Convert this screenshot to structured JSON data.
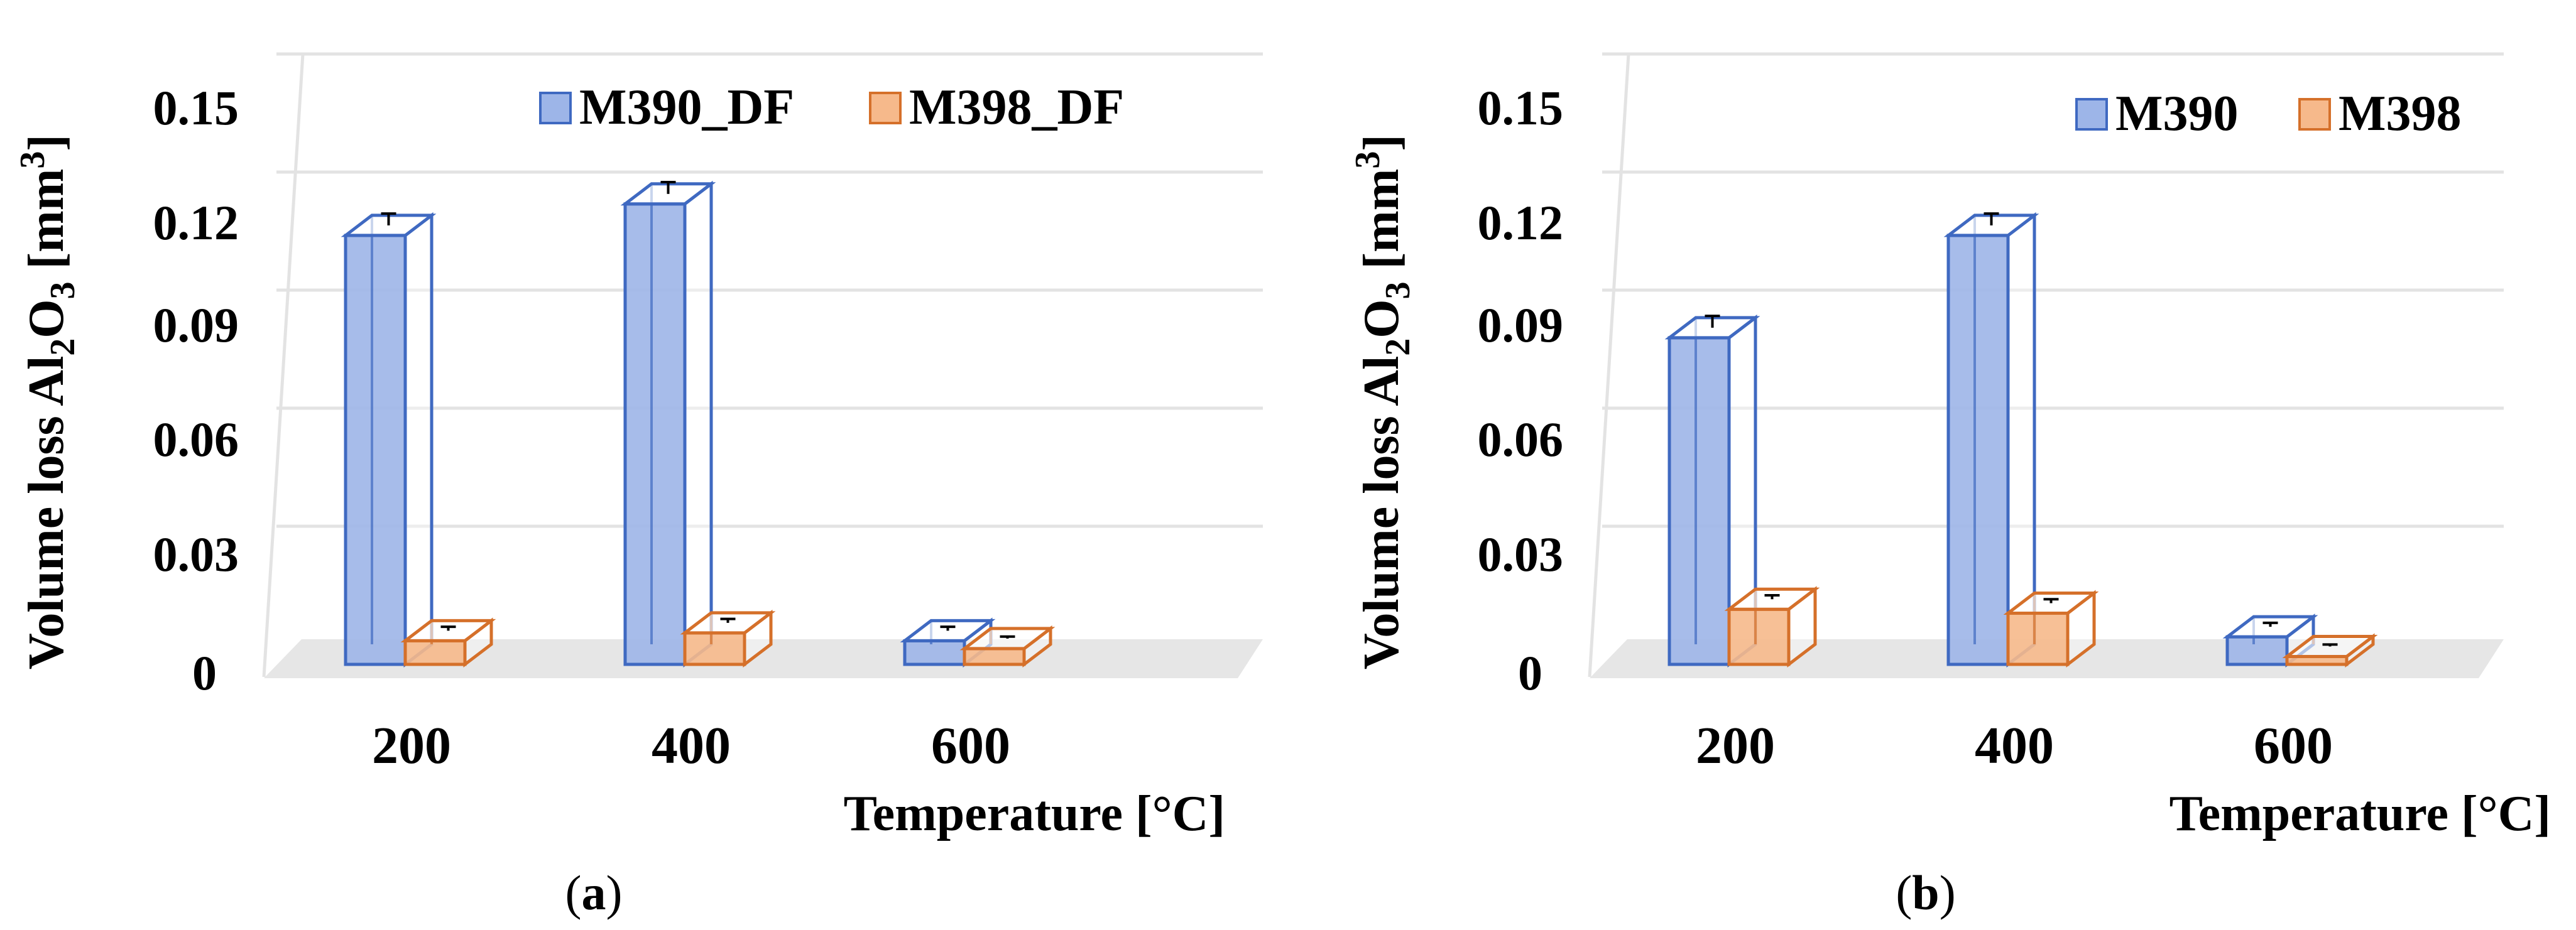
{
  "figure": {
    "panels": [
      "(a)",
      "(b)"
    ]
  },
  "colors": {
    "series1_fill": "#9db5e8",
    "series1_stroke": "#3f69c1",
    "series2_fill": "#f6b98b",
    "series2_stroke": "#d5702a",
    "grid": "#e3e3e3",
    "floor": "#e6e6e6"
  },
  "chart_data": [
    {
      "type": "bar",
      "panel_label": {
        "open": "(",
        "letter": "a",
        "close": ")"
      },
      "categories": [
        "200",
        "400",
        "600"
      ],
      "series": [
        {
          "name": "M390_DF",
          "values": [
            0.109,
            0.117,
            0.006
          ],
          "errors": [
            0.003,
            0.003,
            0.001
          ]
        },
        {
          "name": "M398_DF",
          "values": [
            0.006,
            0.008,
            0.004
          ],
          "errors": [
            0.001,
            0.001,
            0.0005
          ]
        }
      ],
      "yticks": [
        "0.15",
        "0.12",
        "0.09",
        "0.06",
        "0.03",
        "0"
      ],
      "ylim": [
        0,
        0.15
      ],
      "ylabel": {
        "pre": "Volume loss Al",
        "sub1": "2",
        "mid": "O",
        "sub2": "3",
        "unit_open": " [mm",
        "sup": "3",
        "unit_close": "]"
      },
      "xlabel": "Temperature [°C]",
      "legend": "top-right",
      "grid": true
    },
    {
      "type": "bar",
      "panel_label": {
        "open": "(",
        "letter": "b",
        "close": ")"
      },
      "categories": [
        "200",
        "400",
        "600"
      ],
      "series": [
        {
          "name": "M390",
          "values": [
            0.083,
            0.109,
            0.007
          ],
          "errors": [
            0.003,
            0.003,
            0.001
          ]
        },
        {
          "name": "M398",
          "values": [
            0.014,
            0.013,
            0.002
          ],
          "errors": [
            0.001,
            0.001,
            0.0005
          ]
        }
      ],
      "yticks": [
        "0.15",
        "0.12",
        "0.09",
        "0.06",
        "0.03",
        "0"
      ],
      "ylim": [
        0,
        0.15
      ],
      "ylabel": {
        "pre": "Volume loss Al",
        "sub1": "2",
        "mid": "O",
        "sub2": "3",
        "unit_open": " [mm",
        "sup": "3",
        "unit_close": "]"
      },
      "xlabel": "Temperature [°C]",
      "legend": "top-right",
      "grid": true
    }
  ]
}
